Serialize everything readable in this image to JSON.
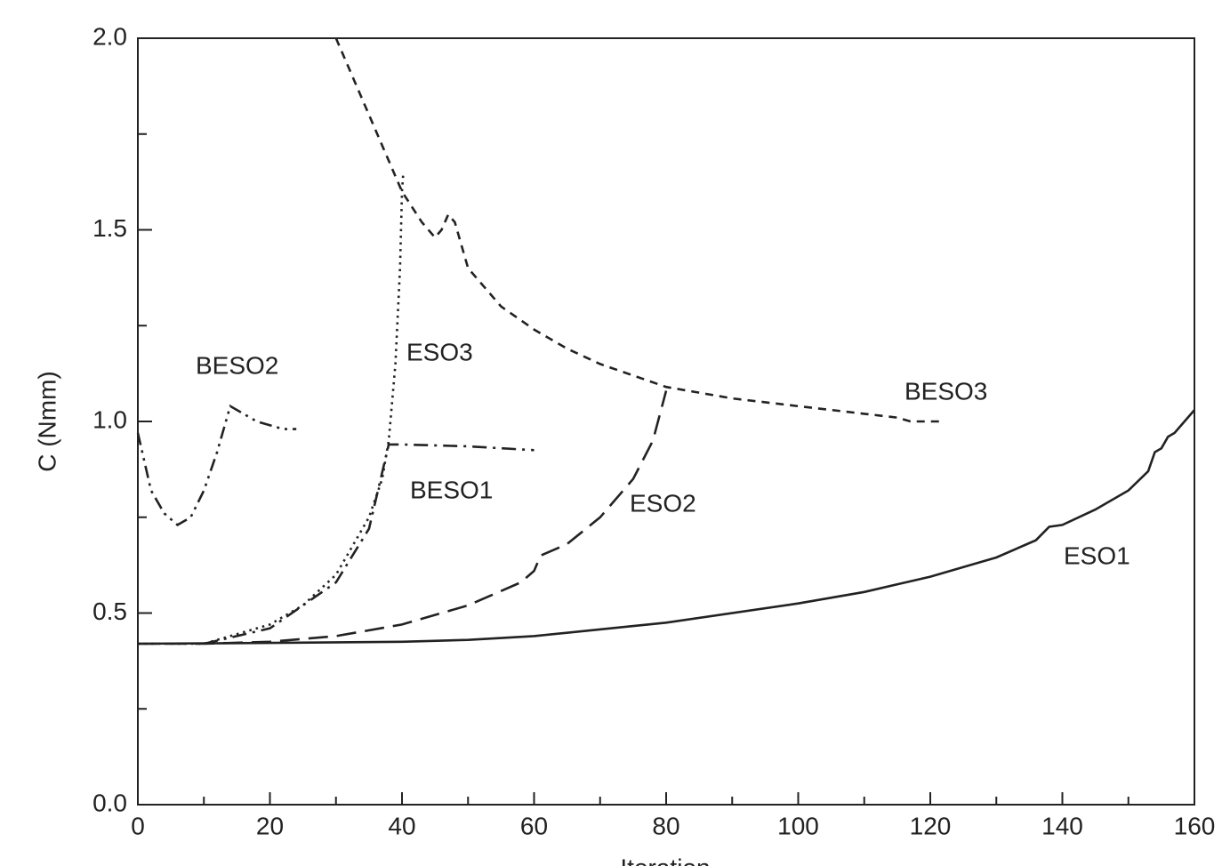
{
  "chart_data": {
    "type": "line",
    "x_label": "Iteration",
    "y_label": "C (Nmm)",
    "xlim": [
      0,
      160
    ],
    "ylim": [
      0,
      2
    ],
    "xticks": [
      0,
      20,
      40,
      60,
      80,
      100,
      120,
      140,
      160
    ],
    "x_minor_ticks": [
      10,
      30,
      50,
      70,
      90,
      110,
      130,
      150
    ],
    "yticks": [
      {
        "value": 0,
        "label": "0.0"
      },
      0.5,
      {
        "value": 1,
        "label": "1.0"
      },
      1.5,
      {
        "value": 2,
        "label": "2.0"
      }
    ],
    "y_minor_ticks": [
      0.25,
      0.75,
      1.25,
      1.75
    ],
    "color": "#222222",
    "series": [
      {
        "name": "ESO1",
        "line_style": "solid",
        "x": [
          0,
          20,
          40,
          50,
          60,
          80,
          100,
          110,
          120,
          130,
          136,
          138,
          140,
          145,
          150,
          153,
          154,
          155,
          156,
          157,
          160
        ],
        "values": [
          0.42,
          0.422,
          0.425,
          0.43,
          0.44,
          0.475,
          0.525,
          0.555,
          0.595,
          0.645,
          0.69,
          0.725,
          0.73,
          0.77,
          0.82,
          0.87,
          0.92,
          0.93,
          0.96,
          0.97,
          1.03
        ]
      },
      {
        "name": "ESO2",
        "line_style": "dashed",
        "x": [
          0,
          10,
          20,
          30,
          40,
          50,
          58,
          60,
          61,
          65,
          70,
          75,
          78,
          80
        ],
        "values": [
          0.42,
          0.42,
          0.425,
          0.44,
          0.47,
          0.52,
          0.58,
          0.61,
          0.65,
          0.68,
          0.75,
          0.85,
          0.95,
          1.08
        ]
      },
      {
        "name": "ESO3",
        "line_style": "dotted",
        "x": [
          0,
          10,
          20,
          25,
          30,
          35,
          37,
          38,
          39,
          39.7,
          40,
          40.2
        ],
        "values": [
          0.42,
          0.42,
          0.47,
          0.52,
          0.6,
          0.75,
          0.85,
          0.95,
          1.15,
          1.4,
          1.6,
          1.65
        ]
      },
      {
        "name": "BESO1",
        "line_style": "dashdot",
        "x": [
          10,
          20,
          30,
          35,
          38,
          40,
          50,
          60
        ],
        "values": [
          0.42,
          0.46,
          0.58,
          0.72,
          0.94,
          0.94,
          0.935,
          0.925
        ]
      },
      {
        "name": "BESO2",
        "line_style": "dashdotdot",
        "x": [
          0,
          2,
          4,
          6,
          8,
          10,
          12,
          14,
          15,
          18,
          22,
          24
        ],
        "values": [
          0.97,
          0.82,
          0.76,
          0.73,
          0.75,
          0.82,
          0.92,
          1.04,
          1.03,
          1.0,
          0.98,
          0.98
        ]
      },
      {
        "name": "BESO3",
        "line_style": "shortdash",
        "x": [
          30,
          35,
          40,
          43,
          45,
          46,
          47,
          48,
          50,
          55,
          60,
          65,
          70,
          80,
          90,
          100,
          110,
          115,
          117,
          120,
          122
        ],
        "values": [
          2.0,
          1.8,
          1.6,
          1.52,
          1.48,
          1.5,
          1.54,
          1.52,
          1.4,
          1.3,
          1.24,
          1.19,
          1.15,
          1.09,
          1.06,
          1.04,
          1.02,
          1.01,
          1.0,
          1.0,
          1.0
        ]
      }
    ]
  }
}
